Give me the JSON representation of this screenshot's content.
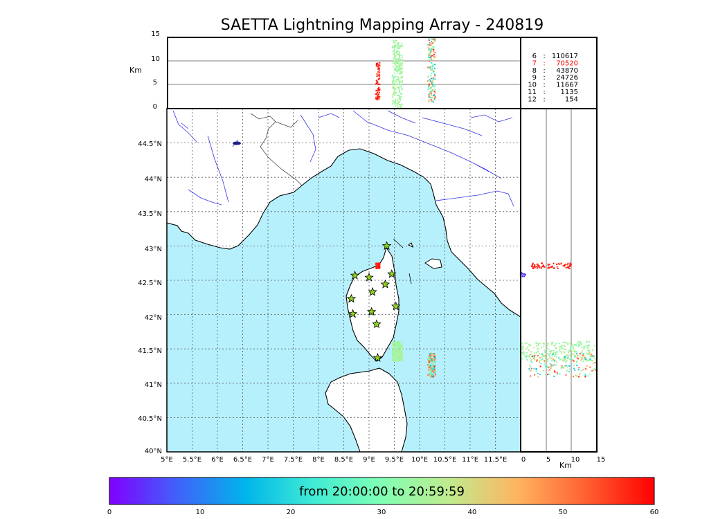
{
  "title": "SAETTA Lightning Mapping Array - 240819",
  "colors": {
    "sea": "#b7f0fd",
    "river": "#3232e6",
    "coast": "#000000",
    "border": "#444444",
    "station_fill": "#8ed41b",
    "highlight": "#ff0000"
  },
  "height_panel": {
    "ylabel": "Km",
    "yticks": [
      "15",
      "10",
      "5",
      "0"
    ],
    "ylim": [
      0,
      15
    ],
    "gridlines_at": [
      5,
      10
    ]
  },
  "side_panel": {
    "xlabel": "Km",
    "xticks": [
      "0",
      "5",
      "10",
      "15"
    ],
    "xlim": [
      0,
      15
    ],
    "gridlines_at": [
      5,
      10
    ]
  },
  "map": {
    "lon_ticks": [
      "5°E",
      "5.5°E",
      "6°E",
      "6.5°E",
      "7°E",
      "7.5°E",
      "8°E",
      "8.5°E",
      "9°E",
      "9.5°E",
      "10°E",
      "10.5°E",
      "11°E",
      "11.5°E"
    ],
    "lat_ticks": [
      "44.5°N",
      "44°N",
      "43.5°N",
      "43°N",
      "42.5°N",
      "42°N",
      "41.5°N",
      "41°N",
      "40.5°N",
      "40°N"
    ],
    "lon_range": [
      5,
      12
    ],
    "lat_range": [
      40,
      45
    ],
    "grid": "dotted",
    "stations": [
      {
        "lon": 9.35,
        "lat": 43.0
      },
      {
        "lon": 8.72,
        "lat": 42.57
      },
      {
        "lon": 9.0,
        "lat": 42.54
      },
      {
        "lon": 9.45,
        "lat": 42.59
      },
      {
        "lon": 9.07,
        "lat": 42.33
      },
      {
        "lon": 9.32,
        "lat": 42.44
      },
      {
        "lon": 8.65,
        "lat": 42.23
      },
      {
        "lon": 9.53,
        "lat": 42.12
      },
      {
        "lon": 8.68,
        "lat": 42.01
      },
      {
        "lon": 9.05,
        "lat": 42.04
      },
      {
        "lon": 9.15,
        "lat": 41.86
      },
      {
        "lon": 9.17,
        "lat": 41.37
      }
    ]
  },
  "counts": [
    {
      "hour": "6",
      "sep": ":",
      "count": "110617",
      "highlight": false
    },
    {
      "hour": "7",
      "sep": ":",
      "count": "70520",
      "highlight": true
    },
    {
      "hour": "8",
      "sep": ":",
      "count": "43870",
      "highlight": false
    },
    {
      "hour": "9",
      "sep": ":",
      "count": "24726",
      "highlight": false
    },
    {
      "hour": "10",
      "sep": ":",
      "count": "11667",
      "highlight": false
    },
    {
      "hour": "11",
      "sep": ":",
      "count": "1135",
      "highlight": false
    },
    {
      "hour": "12",
      "sep": ":",
      "count": "154",
      "highlight": false
    }
  ],
  "colorbar": {
    "label": "from 20:00:00 to 20:59:59",
    "ticks": [
      "0",
      "10",
      "20",
      "30",
      "40",
      "50",
      "60"
    ],
    "range": [
      0,
      60
    ],
    "colormap": "rainbow"
  },
  "chart_data": {
    "type": "scatter",
    "title": "SAETTA Lightning Mapping Array - 240819",
    "xlabel": "",
    "ylabel": "",
    "xlim": [
      5,
      12
    ],
    "ylim": [
      40,
      45
    ],
    "color_variable_range": [
      0,
      60
    ],
    "clusters": [
      {
        "lon_range": [
          9.45,
          9.65
        ],
        "lat_range": [
          41.33,
          41.62
        ],
        "altitude_km": [
          0,
          14.5
        ],
        "color_minutes": [
          30,
          38
        ]
      },
      {
        "lon_range": [
          9.12,
          9.2
        ],
        "lat_range": [
          42.68,
          42.76
        ],
        "altitude_km": [
          2,
          10
        ],
        "color_minutes": [
          55,
          60
        ]
      },
      {
        "lon_range": [
          10.15,
          10.3
        ],
        "lat_range": [
          41.1,
          41.45
        ],
        "altitude_km": [
          1.5,
          15
        ],
        "color_minutes": [
          15,
          58
        ]
      },
      {
        "lon_range": [
          11.98,
          12.0
        ],
        "lat_range": [
          42.56,
          42.62
        ],
        "altitude_km": [
          0,
          1
        ],
        "color_minutes": [
          3,
          6
        ]
      }
    ]
  }
}
